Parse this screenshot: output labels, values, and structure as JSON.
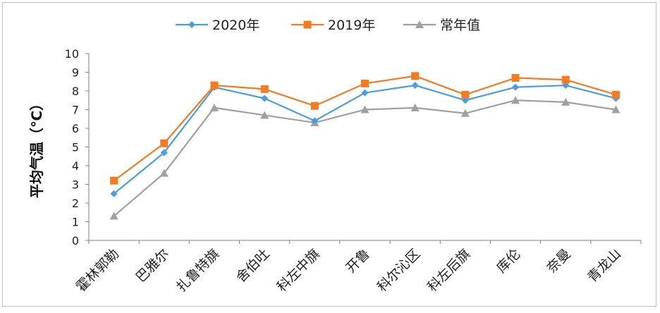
{
  "chart_data": {
    "type": "line",
    "ylabel": "平均气温（℃）",
    "ylim": [
      0,
      10
    ],
    "yticks": [
      0,
      1,
      2,
      3,
      4,
      5,
      6,
      7,
      8,
      9,
      10
    ],
    "grid": false,
    "legend_position": "top",
    "categories": [
      "霍林郭勒",
      "巴雅尔",
      "扎鲁特旗",
      "舍伯吐",
      "科左中旗",
      "开鲁",
      "科尔沁区",
      "科左后旗",
      "库伦",
      "奈曼",
      "青龙山"
    ],
    "series": [
      {
        "name": "2020年",
        "color": "#4a9ee0",
        "marker": "diamond",
        "values": [
          2.5,
          4.7,
          8.2,
          7.6,
          6.4,
          7.9,
          8.3,
          7.5,
          8.2,
          8.3,
          7.6
        ]
      },
      {
        "name": "2019年",
        "color": "#f47b20",
        "marker": "square",
        "values": [
          3.2,
          5.2,
          8.3,
          8.1,
          7.2,
          8.4,
          8.8,
          7.8,
          8.7,
          8.6,
          7.8
        ]
      },
      {
        "name": "常年值",
        "color": "#a0a0a0",
        "marker": "triangle",
        "values": [
          1.3,
          3.6,
          7.1,
          6.7,
          6.3,
          7.0,
          7.1,
          6.8,
          7.5,
          7.4,
          7.0
        ]
      }
    ]
  }
}
